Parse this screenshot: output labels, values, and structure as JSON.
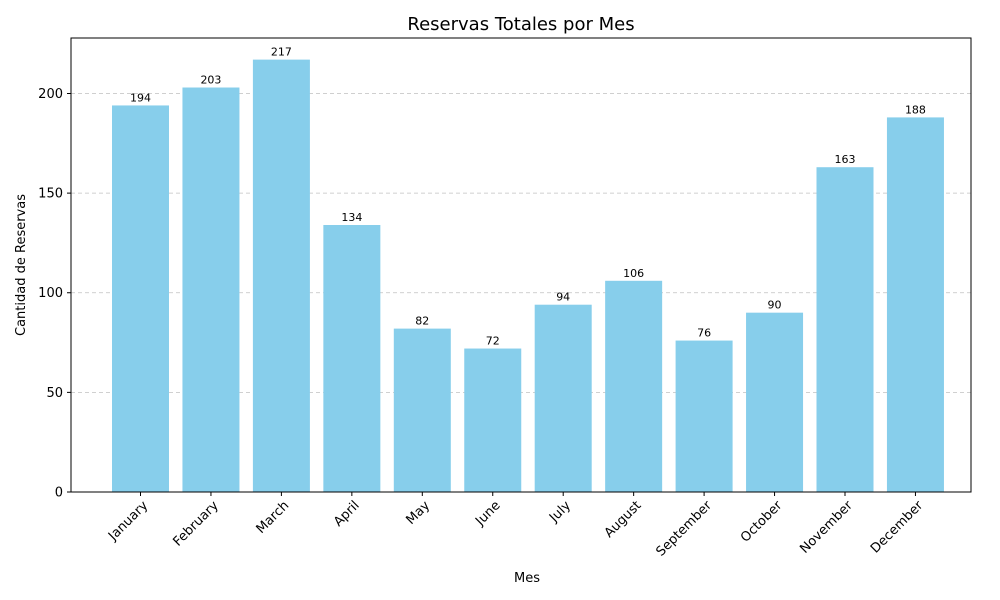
{
  "chart_data": {
    "type": "bar",
    "title": "Reservas Totales por Mes",
    "xlabel": "Mes",
    "ylabel": "Cantidad de Reservas",
    "categories": [
      "January",
      "February",
      "March",
      "April",
      "May",
      "June",
      "July",
      "August",
      "September",
      "October",
      "November",
      "December"
    ],
    "values": [
      194,
      203,
      217,
      134,
      82,
      72,
      94,
      106,
      76,
      90,
      163,
      188
    ],
    "yticks": [
      0,
      50,
      100,
      150,
      200
    ],
    "ylim": [
      0,
      227.85
    ],
    "grid": "y-dashed",
    "bar_color": "#87CEEB"
  }
}
